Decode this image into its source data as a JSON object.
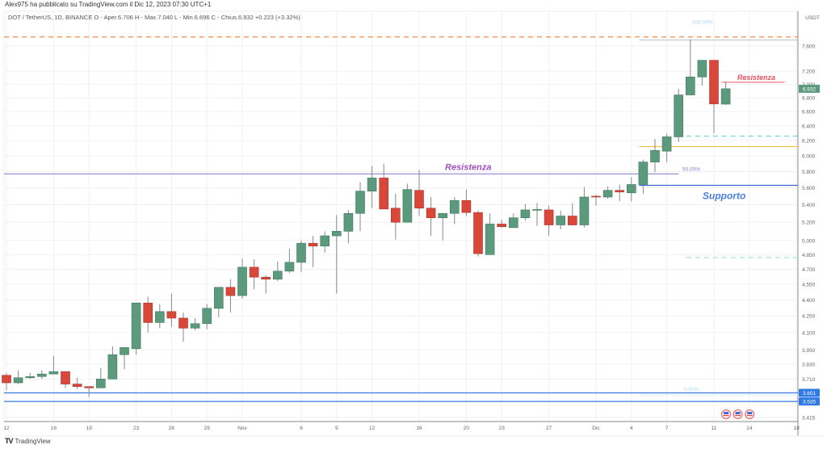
{
  "header": {
    "published": "Alex975 ha pubblicato su TradingView.com il Dic 12, 2023 07:30 UTC+1",
    "legend": "DOT / TetherUS, 1D, BINANCE  O - Aper.6.706  H - Max.7.040  L - Min.6.696  C - Chius.6.932  +0.223 (+3.32%)"
  },
  "footer": {
    "logo_mark": "TV",
    "logo_text": "TradingView"
  },
  "colors": {
    "up": "#5b9a7c",
    "down": "#d9473a",
    "up_border": "#3f7a5d",
    "down_border": "#a8352b"
  },
  "chart_data": {
    "type": "candlestick",
    "symbol": "DOT / TetherUS",
    "currency": "USDT",
    "scale": "log",
    "ylim": [
      3.38,
      7.85
    ],
    "last_price": "6.932",
    "yticks": [
      "7.600",
      "7.200",
      "7.000",
      "6.800",
      "6.600",
      "6.400",
      "6.200",
      "6.000",
      "5.800",
      "5.600",
      "5.400",
      "5.200",
      "5.000",
      "4.850",
      "4.700",
      "4.550",
      "4.400",
      "4.250",
      "4.100",
      "3.950",
      "3.830",
      "3.710",
      "3.415"
    ],
    "xticks": [
      {
        "label": "12",
        "index": 0
      },
      {
        "label": "16",
        "index": 4
      },
      {
        "label": "19",
        "index": 7
      },
      {
        "label": "23",
        "index": 11
      },
      {
        "label": "26",
        "index": 14
      },
      {
        "label": "29",
        "index": 17
      },
      {
        "label": "Nov",
        "index": 20
      },
      {
        "label": "6",
        "index": 25
      },
      {
        "label": "9",
        "index": 28
      },
      {
        "label": "12",
        "index": 31
      },
      {
        "label": "16",
        "index": 35
      },
      {
        "label": "20",
        "index": 39
      },
      {
        "label": "23",
        "index": 42
      },
      {
        "label": "27",
        "index": 46
      },
      {
        "label": "Dic",
        "index": 50
      },
      {
        "label": "4",
        "index": 53
      },
      {
        "label": "7",
        "index": 56
      },
      {
        "label": "11",
        "index": 60
      },
      {
        "label": "14",
        "index": 63
      },
      {
        "label": "18",
        "index": 67
      }
    ],
    "candles": [
      [
        3.74,
        3.76,
        3.62,
        3.68
      ],
      [
        3.68,
        3.78,
        3.67,
        3.72
      ],
      [
        3.72,
        3.76,
        3.71,
        3.73
      ],
      [
        3.73,
        3.78,
        3.71,
        3.75
      ],
      [
        3.75,
        3.9,
        3.75,
        3.77
      ],
      [
        3.77,
        3.77,
        3.64,
        3.67
      ],
      [
        3.67,
        3.72,
        3.63,
        3.65
      ],
      [
        3.65,
        3.65,
        3.57,
        3.64
      ],
      [
        3.64,
        3.8,
        3.64,
        3.71
      ],
      [
        3.71,
        3.98,
        3.71,
        3.91
      ],
      [
        3.91,
        3.97,
        3.79,
        3.97
      ],
      [
        3.96,
        4.37,
        3.91,
        4.37
      ],
      [
        4.37,
        4.43,
        4.1,
        4.19
      ],
      [
        4.19,
        4.36,
        4.14,
        4.29
      ],
      [
        4.29,
        4.46,
        4.15,
        4.23
      ],
      [
        4.23,
        4.28,
        4.02,
        4.14
      ],
      [
        4.14,
        4.23,
        4.12,
        4.18
      ],
      [
        4.18,
        4.36,
        4.13,
        4.32
      ],
      [
        4.32,
        4.52,
        4.24,
        4.52
      ],
      [
        4.52,
        4.6,
        4.28,
        4.44
      ],
      [
        4.44,
        4.81,
        4.41,
        4.72
      ],
      [
        4.72,
        4.8,
        4.5,
        4.62
      ],
      [
        4.62,
        4.64,
        4.46,
        4.6
      ],
      [
        4.6,
        4.78,
        4.58,
        4.68
      ],
      [
        4.68,
        4.91,
        4.66,
        4.77
      ],
      [
        4.77,
        5.0,
        4.67,
        4.97
      ],
      [
        4.97,
        5.05,
        4.72,
        4.94
      ],
      [
        4.94,
        5.1,
        4.87,
        5.05
      ],
      [
        5.05,
        5.28,
        4.46,
        5.1
      ],
      [
        5.1,
        5.34,
        4.97,
        5.3
      ],
      [
        5.3,
        5.67,
        5.1,
        5.56
      ],
      [
        5.56,
        5.87,
        5.36,
        5.72
      ],
      [
        5.72,
        5.9,
        5.35,
        5.35
      ],
      [
        5.36,
        5.53,
        5.01,
        5.2
      ],
      [
        5.2,
        5.65,
        5.2,
        5.58
      ],
      [
        5.57,
        5.82,
        5.27,
        5.36
      ],
      [
        5.36,
        5.49,
        5.05,
        5.25
      ],
      [
        5.25,
        5.3,
        5.0,
        5.3
      ],
      [
        5.3,
        5.49,
        5.18,
        5.45
      ],
      [
        5.45,
        5.58,
        5.27,
        5.31
      ],
      [
        5.31,
        5.33,
        4.83,
        4.86
      ],
      [
        4.85,
        5.3,
        4.85,
        5.18
      ],
      [
        5.18,
        5.23,
        5.14,
        5.15
      ],
      [
        5.14,
        5.3,
        5.14,
        5.25
      ],
      [
        5.25,
        5.41,
        5.22,
        5.34
      ],
      [
        5.34,
        5.42,
        5.16,
        5.345
      ],
      [
        5.34,
        5.39,
        5.05,
        5.17
      ],
      [
        5.17,
        5.33,
        5.12,
        5.27
      ],
      [
        5.27,
        5.42,
        5.16,
        5.17
      ],
      [
        5.17,
        5.61,
        5.14,
        5.49
      ],
      [
        5.5,
        5.52,
        5.39,
        5.49
      ],
      [
        5.49,
        5.62,
        5.47,
        5.57
      ],
      [
        5.57,
        5.64,
        5.44,
        5.55
      ],
      [
        5.54,
        5.73,
        5.44,
        5.64
      ],
      [
        5.64,
        5.95,
        5.53,
        5.92
      ],
      [
        5.92,
        6.22,
        5.79,
        6.07
      ],
      [
        6.06,
        6.29,
        5.92,
        6.25
      ],
      [
        6.25,
        6.93,
        6.18,
        6.84
      ],
      [
        6.84,
        7.71,
        6.84,
        7.11
      ],
      [
        7.11,
        7.37,
        6.98,
        7.37
      ],
      [
        7.37,
        7.37,
        6.3,
        6.71
      ],
      [
        6.706,
        7.04,
        6.696,
        6.932
      ]
    ],
    "levels": [
      {
        "name": "top-dashed",
        "price": 7.75,
        "color": "#f08a4b",
        "style": "dashed",
        "from": 0,
        "to": 67
      },
      {
        "name": "fib-100",
        "price": 7.7,
        "color": "#c8c8c8",
        "style": "solid",
        "from": 54,
        "to": 67,
        "label": "100.00%",
        "label_color": "#a9d8f0"
      },
      {
        "name": "resistenza-recent",
        "price": 7.03,
        "color": "#f06a78",
        "style": "solid",
        "from": 61,
        "to": 66,
        "label": "Resistenza",
        "label_color": "#e8505f"
      },
      {
        "name": "cyan-upper",
        "price": 6.26,
        "color": "#6fd3d8",
        "style": "dashed",
        "from": 58,
        "to": 67
      },
      {
        "name": "yellow",
        "price": 6.12,
        "color": "#f2c14e",
        "style": "solid",
        "from": 54,
        "to": 67
      },
      {
        "name": "resistenza-main",
        "price": 5.77,
        "color": "#9a8fd8",
        "style": "solid",
        "from": 0,
        "to": 57,
        "label": "Resistenza",
        "label_color": "#a24fc0",
        "fib_label": "50.00%"
      },
      {
        "name": "supporto",
        "price": 5.63,
        "color": "#3a64d8",
        "style": "solid",
        "from": 54,
        "to": 67,
        "label": "Supporto",
        "label_color": "#4a7fe0"
      },
      {
        "name": "cyan-lower",
        "price": 4.82,
        "color": "#9fe3dc",
        "style": "dashed",
        "from": 58,
        "to": 67
      },
      {
        "name": "fib-0",
        "price": 3.585,
        "color": "#d5ecf7",
        "style": "solid",
        "from": 54,
        "to": 67,
        "label": "0.00%",
        "label_color": "#a9d8f0"
      },
      {
        "name": "blue-3601",
        "price": 3.601,
        "color": "#3a78e0",
        "style": "solid",
        "from": 0,
        "to": 67,
        "badge": "3.601"
      },
      {
        "name": "blue-3535",
        "price": 3.535,
        "color": "#3a78e0",
        "style": "solid",
        "from": 0,
        "to": 67,
        "badge": "3.535"
      }
    ],
    "events": [
      "us-flag",
      "us-flag",
      "us-flag"
    ]
  }
}
